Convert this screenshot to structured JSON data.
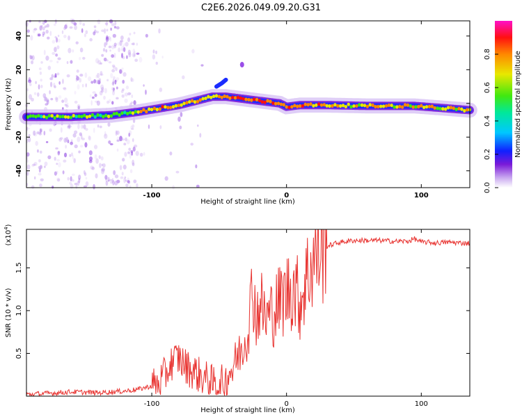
{
  "title": "C2E6.2026.049.09.20.G31",
  "colors": {
    "snr_line": "#e8322f",
    "frame": "#000000"
  },
  "chart_data": [
    {
      "type": "heatmap",
      "name": "spectrogram",
      "xlabel": "Height of straight line (km)",
      "ylabel": "Frequency (Hz)",
      "xlim": [
        -193,
        136
      ],
      "ylim": [
        -50,
        49
      ],
      "xticks": [
        -100,
        0,
        100
      ],
      "yticks": [
        -40,
        -20,
        0,
        20,
        40
      ],
      "colorbar": {
        "label": "Normalized spectral amplitude",
        "range": [
          0,
          1
        ],
        "ticks": [
          "0.0",
          "0.2",
          "0.4",
          "0.6",
          "0.8"
        ],
        "tick_values": [
          0.0,
          0.2,
          0.4,
          0.6,
          0.8
        ]
      },
      "ridge": {
        "x": [
          -193,
          -160,
          -130,
          -110,
          -95,
          -80,
          -65,
          -55,
          -45,
          -35,
          -25,
          -15,
          -5,
          0,
          10,
          30,
          60,
          95,
          120,
          136
        ],
        "freq": [
          -8,
          -8,
          -7,
          -5,
          -3,
          -1,
          2,
          4,
          4,
          3,
          2,
          1,
          0,
          -2,
          -1,
          -1,
          -1.5,
          -1.5,
          -3,
          -4
        ]
      },
      "branch": {
        "x": [
          -52,
          -48,
          -45
        ],
        "freq": [
          10,
          12,
          14
        ]
      },
      "blip": {
        "x": -33,
        "freq": 23
      }
    },
    {
      "type": "line",
      "name": "snr",
      "xlabel": "Height of straight line (km)",
      "ylabel": "SNR (10 * v/v)",
      "y_multiplier": "(x10",
      "y_multiplier_exp": "4",
      "y_multiplier_close": ")",
      "xlim": [
        -193,
        136
      ],
      "ylim": [
        0,
        1.95
      ],
      "xticks": [
        -100,
        0,
        100
      ],
      "yticks": [
        0.5,
        1.0,
        1.5
      ],
      "ytick_labels": [
        "0.5",
        "1.0",
        "1.5"
      ],
      "series": [
        {
          "name": "SNR",
          "x": [
            -193,
            -180,
            -160,
            -140,
            -120,
            -110,
            -100,
            -95,
            -90,
            -85,
            -80,
            -75,
            -70,
            -65,
            -60,
            -55,
            -50,
            -45,
            -40,
            -35,
            -30,
            -27,
            -25,
            -22,
            -20,
            -15,
            -10,
            -5,
            0,
            5,
            10,
            15,
            20,
            25,
            30,
            35,
            40,
            50,
            60,
            70,
            80,
            90,
            95,
            100,
            105,
            110,
            120,
            130,
            136
          ],
          "values": [
            0.02,
            0.03,
            0.05,
            0.04,
            0.06,
            0.08,
            0.12,
            0.15,
            0.25,
            0.4,
            0.45,
            0.35,
            0.3,
            0.25,
            0.2,
            0.15,
            0.12,
            0.2,
            0.35,
            0.5,
            0.7,
            1.0,
            1.3,
            0.9,
            1.1,
            0.9,
            1.0,
            1.1,
            1.2,
            1.3,
            1.1,
            1.4,
            1.6,
            1.7,
            1.75,
            1.78,
            1.8,
            1.82,
            1.82,
            1.82,
            1.81,
            1.81,
            1.84,
            1.8,
            1.8,
            1.79,
            1.8,
            1.79,
            1.79
          ]
        }
      ]
    }
  ]
}
